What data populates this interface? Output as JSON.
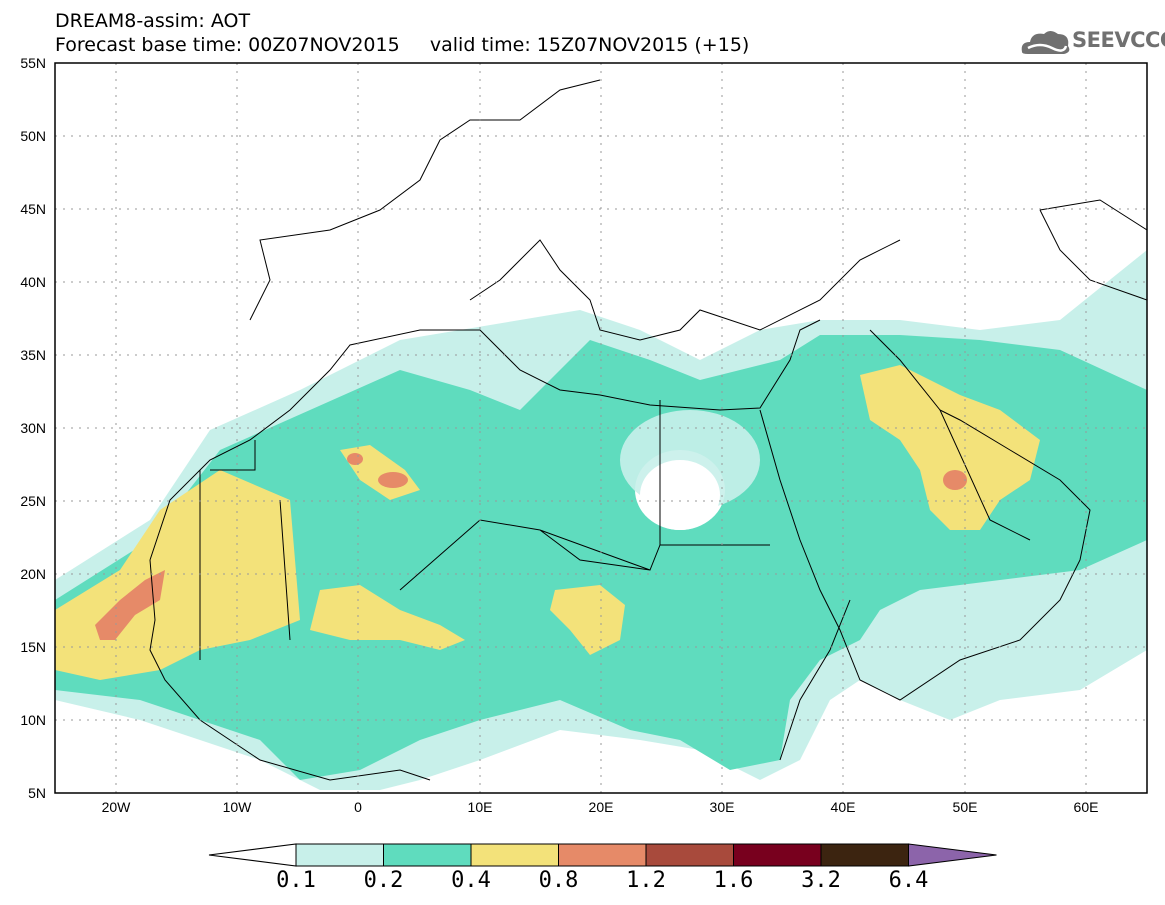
{
  "header": {
    "line1": "DREAM8-assim: AOT",
    "line2": "Forecast base time: 00Z07NOV2015     valid time: 15Z07NOV2015 (+15)"
  },
  "logo": {
    "text": "SEEVCCC",
    "icon": "cloud-icon"
  },
  "map": {
    "extent": {
      "lon": [
        -25,
        65
      ],
      "lat": [
        5,
        55
      ]
    },
    "lat_ticks": [
      "5N",
      "10N",
      "15N",
      "20N",
      "25N",
      "30N",
      "35N",
      "40N",
      "45N",
      "50N",
      "55N"
    ],
    "lon_ticks": [
      "20W",
      "10W",
      "0",
      "10E",
      "20E",
      "30E",
      "40E",
      "50E",
      "60E"
    ]
  },
  "colorbar": {
    "labels": [
      "0.1",
      "0.2",
      "0.4",
      "0.8",
      "1.2",
      "1.6",
      "3.2",
      "6.4"
    ],
    "colors": [
      "#ffffff",
      "#c8f0ea",
      "#5fdcbe",
      "#f3e27a",
      "#e68a68",
      "#a84a3c",
      "#78001e",
      "#3c2410",
      "#8c64aa"
    ]
  }
}
